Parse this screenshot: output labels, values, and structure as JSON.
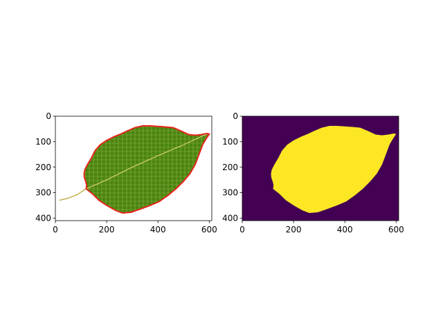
{
  "figure": {
    "background": "#ffffff"
  },
  "chart_data": [
    {
      "type": "image",
      "title": "",
      "xlabel": "",
      "ylabel": "",
      "xlim": [
        0,
        610
      ],
      "ylim": [
        410,
        0
      ],
      "xticks": [
        0,
        200,
        400,
        600
      ],
      "yticks": [
        0,
        100,
        200,
        300,
        400
      ],
      "xtick_labels": [
        "0",
        "200",
        "400",
        "600"
      ],
      "ytick_labels": [
        "0",
        "100",
        "200",
        "300",
        "400"
      ],
      "image_content": "photo of a green leaf on white background with red contour outline",
      "contour_color": "#e8241b",
      "leaf_color": "#4f8a12",
      "vein_color": "#d9d36a"
    },
    {
      "type": "image",
      "title": "",
      "xlabel": "",
      "ylabel": "",
      "xlim": [
        0,
        610
      ],
      "ylim": [
        410,
        0
      ],
      "xticks": [
        0,
        200,
        400,
        600
      ],
      "yticks": [
        0,
        100,
        200,
        300,
        400
      ],
      "xtick_labels": [
        "0",
        "200",
        "400",
        "600"
      ],
      "ytick_labels": [
        "0",
        "100",
        "200",
        "300",
        "400"
      ],
      "image_content": "binary segmentation mask of the leaf (viridis colormap)",
      "mask_foreground_color": "#fde725",
      "mask_background_color": "#440154"
    }
  ],
  "leaf_outline": [
    [
      120,
      285
    ],
    [
      122,
      270
    ],
    [
      118,
      255
    ],
    [
      113,
      240
    ],
    [
      112,
      225
    ],
    [
      115,
      210
    ],
    [
      125,
      190
    ],
    [
      140,
      165
    ],
    [
      155,
      135
    ],
    [
      175,
      112
    ],
    [
      200,
      95
    ],
    [
      230,
      80
    ],
    [
      255,
      70
    ],
    [
      280,
      58
    ],
    [
      310,
      45
    ],
    [
      340,
      38
    ],
    [
      370,
      38
    ],
    [
      400,
      40
    ],
    [
      430,
      42
    ],
    [
      460,
      45
    ],
    [
      490,
      58
    ],
    [
      520,
      72
    ],
    [
      545,
      75
    ],
    [
      570,
      72
    ],
    [
      590,
      68
    ],
    [
      600,
      70
    ],
    [
      590,
      85
    ],
    [
      575,
      110
    ],
    [
      560,
      150
    ],
    [
      545,
      190
    ],
    [
      525,
      225
    ],
    [
      500,
      255
    ],
    [
      470,
      285
    ],
    [
      440,
      310
    ],
    [
      405,
      335
    ],
    [
      370,
      350
    ],
    [
      330,
      365
    ],
    [
      295,
      377
    ],
    [
      262,
      380
    ],
    [
      235,
      370
    ],
    [
      200,
      350
    ],
    [
      170,
      330
    ],
    [
      145,
      305
    ],
    [
      120,
      285
    ]
  ],
  "leaf_stem": [
    [
      15,
      330
    ],
    [
      50,
      322
    ],
    [
      85,
      308
    ],
    [
      120,
      285
    ]
  ],
  "leaf_midrib": [
    [
      120,
      285
    ],
    [
      200,
      250
    ],
    [
      300,
      200
    ],
    [
      400,
      155
    ],
    [
      500,
      112
    ],
    [
      590,
      70
    ]
  ]
}
